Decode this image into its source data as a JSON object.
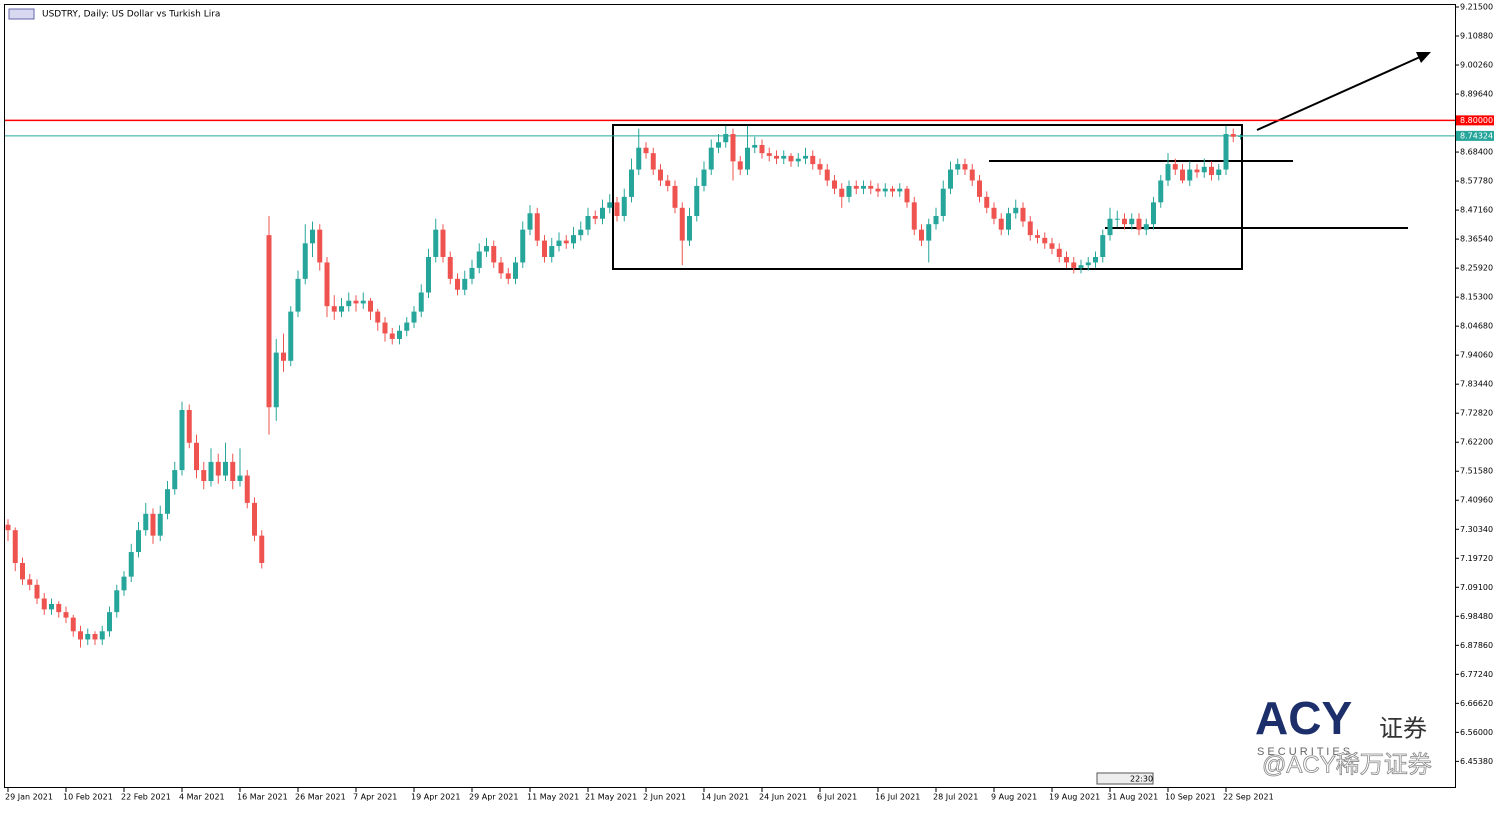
{
  "chart_data": {
    "type": "candlestick",
    "title": "USDTRY, Daily:  US Dollar vs Turkish Lira",
    "up_color": "#26a69a",
    "down_color": "#ef5350",
    "ylim": [
      6.36,
      9.215
    ],
    "yticks": [
      {
        "value": 9.215,
        "label": "9.21500"
      },
      {
        "value": 9.1088,
        "label": "9.10880"
      },
      {
        "value": 9.0026,
        "label": "9.00260"
      },
      {
        "value": 8.8964,
        "label": "8.89640"
      },
      {
        "value": 8.684,
        "label": "8.68400"
      },
      {
        "value": 8.5778,
        "label": "8.57780"
      },
      {
        "value": 8.4716,
        "label": "8.47160"
      },
      {
        "value": 8.3654,
        "label": "8.36540"
      },
      {
        "value": 8.2592,
        "label": "8.25920"
      },
      {
        "value": 8.153,
        "label": "8.15300"
      },
      {
        "value": 8.0468,
        "label": "8.04680"
      },
      {
        "value": 7.9406,
        "label": "7.94060"
      },
      {
        "value": 7.8344,
        "label": "7.83440"
      },
      {
        "value": 7.7282,
        "label": "7.72820"
      },
      {
        "value": 7.622,
        "label": "7.62200"
      },
      {
        "value": 7.5158,
        "label": "7.51580"
      },
      {
        "value": 7.4096,
        "label": "7.40960"
      },
      {
        "value": 7.3034,
        "label": "7.30340"
      },
      {
        "value": 7.1972,
        "label": "7.19720"
      },
      {
        "value": 7.091,
        "label": "7.09100"
      },
      {
        "value": 6.9848,
        "label": "6.98480"
      },
      {
        "value": 6.8786,
        "label": "6.87860"
      },
      {
        "value": 6.7724,
        "label": "6.77240"
      },
      {
        "value": 6.6662,
        "label": "6.66620"
      },
      {
        "value": 6.56,
        "label": "6.56000"
      },
      {
        "value": 6.4538,
        "label": "6.45380"
      }
    ],
    "levels": [
      {
        "value": 8.8,
        "label": "8.80000",
        "color": "#ff0000"
      },
      {
        "value": 8.74324,
        "label": "8.74324",
        "color": "#26a69a"
      }
    ],
    "categories": [
      "29 Jan 2021",
      null,
      null,
      null,
      null,
      null,
      null,
      null,
      "10 Feb 2021",
      null,
      null,
      null,
      null,
      null,
      null,
      null,
      "22 Feb 2021",
      null,
      null,
      null,
      null,
      null,
      null,
      null,
      "4 Mar 2021",
      null,
      null,
      null,
      null,
      null,
      null,
      null,
      "16 Mar 2021",
      null,
      null,
      null,
      null,
      null,
      null,
      null,
      "26 Mar 2021",
      null,
      null,
      null,
      null,
      null,
      null,
      null,
      "7 Apr 2021",
      null,
      null,
      null,
      null,
      null,
      null,
      null,
      "19 Apr 2021",
      null,
      null,
      null,
      null,
      null,
      null,
      null,
      "29 Apr 2021",
      null,
      null,
      null,
      null,
      null,
      null,
      null,
      "11 May 2021",
      null,
      null,
      null,
      null,
      null,
      null,
      null,
      "21 May 2021",
      null,
      null,
      null,
      null,
      null,
      null,
      null,
      "2 Jun 2021",
      null,
      null,
      null,
      null,
      null,
      null,
      null,
      "14 Jun 2021",
      null,
      null,
      null,
      null,
      null,
      null,
      null,
      "24 Jun 2021",
      null,
      null,
      null,
      null,
      null,
      null,
      null,
      "6 Jul 2021",
      null,
      null,
      null,
      null,
      null,
      null,
      null,
      "16 Jul 2021",
      null,
      null,
      null,
      null,
      null,
      null,
      null,
      "28 Jul 2021",
      null,
      null,
      null,
      null,
      null,
      null,
      null,
      "9 Aug 2021",
      null,
      null,
      null,
      null,
      null,
      null,
      null,
      "19 Aug 2021",
      null,
      null,
      null,
      null,
      null,
      null,
      null,
      "31 Aug 2021",
      null,
      null,
      null,
      null,
      null,
      null,
      null,
      "10 Sep 2021",
      null,
      null,
      null,
      null,
      null,
      null,
      null,
      "22 Sep 2021",
      null,
      null
    ],
    "ohlc": [
      [
        7.32,
        7.34,
        7.26,
        7.3
      ],
      [
        7.3,
        7.31,
        7.15,
        7.18
      ],
      [
        7.18,
        7.2,
        7.1,
        7.12
      ],
      [
        7.12,
        7.14,
        7.08,
        7.1
      ],
      [
        7.1,
        7.12,
        7.03,
        7.05
      ],
      [
        7.05,
        7.07,
        6.99,
        7.01
      ],
      [
        7.01,
        7.05,
        6.99,
        7.03
      ],
      [
        7.03,
        7.04,
        6.98,
        7.0
      ],
      [
        7.0,
        7.02,
        6.96,
        6.98
      ],
      [
        6.98,
        6.99,
        6.91,
        6.93
      ],
      [
        6.93,
        6.95,
        6.87,
        6.9
      ],
      [
        6.9,
        6.94,
        6.88,
        6.92
      ],
      [
        6.92,
        6.93,
        6.88,
        6.9
      ],
      [
        6.9,
        6.95,
        6.88,
        6.93
      ],
      [
        6.93,
        7.02,
        6.91,
        7.0
      ],
      [
        7.0,
        7.1,
        6.98,
        7.08
      ],
      [
        7.08,
        7.15,
        7.06,
        7.13
      ],
      [
        7.13,
        7.25,
        7.11,
        7.22
      ],
      [
        7.22,
        7.33,
        7.2,
        7.3
      ],
      [
        7.3,
        7.4,
        7.28,
        7.36
      ],
      [
        7.36,
        7.38,
        7.25,
        7.28
      ],
      [
        7.28,
        7.39,
        7.26,
        7.36
      ],
      [
        7.36,
        7.48,
        7.34,
        7.45
      ],
      [
        7.45,
        7.55,
        7.43,
        7.52
      ],
      [
        7.52,
        7.77,
        7.5,
        7.74
      ],
      [
        7.74,
        7.76,
        7.6,
        7.62
      ],
      [
        7.62,
        7.65,
        7.49,
        7.52
      ],
      [
        7.52,
        7.55,
        7.45,
        7.48
      ],
      [
        7.48,
        7.6,
        7.46,
        7.55
      ],
      [
        7.55,
        7.58,
        7.47,
        7.5
      ],
      [
        7.5,
        7.62,
        7.48,
        7.55
      ],
      [
        7.55,
        7.58,
        7.45,
        7.48
      ],
      [
        7.48,
        7.6,
        7.46,
        7.5
      ],
      [
        7.5,
        7.52,
        7.38,
        7.4
      ],
      [
        7.4,
        7.42,
        7.26,
        7.28
      ],
      [
        7.28,
        7.3,
        7.16,
        7.18
      ],
      [
        8.38,
        8.45,
        7.65,
        7.75
      ],
      [
        7.75,
        8.0,
        7.7,
        7.95
      ],
      [
        7.95,
        8.02,
        7.88,
        7.92
      ],
      [
        7.92,
        8.12,
        7.9,
        8.1
      ],
      [
        8.1,
        8.25,
        8.08,
        8.22
      ],
      [
        8.22,
        8.42,
        8.2,
        8.35
      ],
      [
        8.35,
        8.43,
        8.3,
        8.4
      ],
      [
        8.4,
        8.42,
        8.25,
        8.28
      ],
      [
        8.28,
        8.3,
        8.08,
        8.12
      ],
      [
        8.12,
        8.16,
        8.07,
        8.1
      ],
      [
        8.1,
        8.15,
        8.08,
        8.12
      ],
      [
        8.12,
        8.17,
        8.1,
        8.14
      ],
      [
        8.14,
        8.16,
        8.1,
        8.13
      ],
      [
        8.13,
        8.17,
        8.11,
        8.14
      ],
      [
        8.14,
        8.15,
        8.07,
        8.1
      ],
      [
        8.1,
        8.11,
        8.03,
        8.06
      ],
      [
        8.06,
        8.08,
        7.99,
        8.02
      ],
      [
        8.02,
        8.04,
        7.98,
        8.0
      ],
      [
        8.0,
        8.05,
        7.98,
        8.03
      ],
      [
        8.03,
        8.08,
        8.01,
        8.06
      ],
      [
        8.06,
        8.12,
        8.04,
        8.1
      ],
      [
        8.1,
        8.2,
        8.08,
        8.17
      ],
      [
        8.17,
        8.33,
        8.15,
        8.3
      ],
      [
        8.3,
        8.44,
        8.28,
        8.4
      ],
      [
        8.4,
        8.42,
        8.28,
        8.3
      ],
      [
        8.3,
        8.32,
        8.2,
        8.22
      ],
      [
        8.22,
        8.24,
        8.16,
        8.18
      ],
      [
        8.18,
        8.25,
        8.16,
        8.22
      ],
      [
        8.22,
        8.29,
        8.2,
        8.26
      ],
      [
        8.26,
        8.35,
        8.24,
        8.32
      ],
      [
        8.32,
        8.37,
        8.3,
        8.34
      ],
      [
        8.34,
        8.36,
        8.26,
        8.28
      ],
      [
        8.28,
        8.3,
        8.22,
        8.24
      ],
      [
        8.24,
        8.26,
        8.2,
        8.22
      ],
      [
        8.22,
        8.3,
        8.2,
        8.28
      ],
      [
        8.28,
        8.43,
        8.26,
        8.4
      ],
      [
        8.4,
        8.49,
        8.38,
        8.46
      ],
      [
        8.46,
        8.48,
        8.34,
        8.36
      ],
      [
        8.36,
        8.38,
        8.28,
        8.3
      ],
      [
        8.3,
        8.37,
        8.28,
        8.34
      ],
      [
        8.34,
        8.39,
        8.32,
        8.36
      ],
      [
        8.36,
        8.38,
        8.33,
        8.35
      ],
      [
        8.35,
        8.41,
        8.33,
        8.38
      ],
      [
        8.38,
        8.43,
        8.36,
        8.4
      ],
      [
        8.4,
        8.48,
        8.38,
        8.45
      ],
      [
        8.45,
        8.47,
        8.42,
        8.44
      ],
      [
        8.44,
        8.51,
        8.42,
        8.48
      ],
      [
        8.48,
        8.53,
        8.46,
        8.5
      ],
      [
        8.5,
        8.52,
        8.43,
        8.45
      ],
      [
        8.45,
        8.55,
        8.43,
        8.52
      ],
      [
        8.52,
        8.66,
        8.5,
        8.62
      ],
      [
        8.62,
        8.77,
        8.6,
        8.7
      ],
      [
        8.7,
        8.72,
        8.66,
        8.68
      ],
      [
        8.68,
        8.7,
        8.6,
        8.62
      ],
      [
        8.62,
        8.64,
        8.56,
        8.58
      ],
      [
        8.58,
        8.6,
        8.54,
        8.56
      ],
      [
        8.56,
        8.58,
        8.46,
        8.48
      ],
      [
        8.48,
        8.5,
        8.27,
        8.36
      ],
      [
        8.36,
        8.48,
        8.34,
        8.45
      ],
      [
        8.45,
        8.59,
        8.43,
        8.56
      ],
      [
        8.56,
        8.65,
        8.54,
        8.62
      ],
      [
        8.62,
        8.73,
        8.6,
        8.7
      ],
      [
        8.7,
        8.75,
        8.68,
        8.72
      ],
      [
        8.72,
        8.78,
        8.7,
        8.75
      ],
      [
        8.75,
        8.77,
        8.58,
        8.65
      ],
      [
        8.65,
        8.67,
        8.6,
        8.62
      ],
      [
        8.62,
        8.78,
        8.6,
        8.7
      ],
      [
        8.7,
        8.74,
        8.68,
        8.71
      ],
      [
        8.71,
        8.73,
        8.66,
        8.68
      ],
      [
        8.68,
        8.7,
        8.65,
        8.67
      ],
      [
        8.67,
        8.69,
        8.64,
        8.66
      ],
      [
        8.66,
        8.69,
        8.64,
        8.67
      ],
      [
        8.67,
        8.68,
        8.63,
        8.65
      ],
      [
        8.65,
        8.68,
        8.63,
        8.66
      ],
      [
        8.66,
        8.7,
        8.64,
        8.67
      ],
      [
        8.67,
        8.69,
        8.62,
        8.64
      ],
      [
        8.64,
        8.66,
        8.6,
        8.62
      ],
      [
        8.62,
        8.64,
        8.56,
        8.58
      ],
      [
        8.58,
        8.6,
        8.53,
        8.55
      ],
      [
        8.55,
        8.57,
        8.48,
        8.52
      ],
      [
        8.52,
        8.58,
        8.5,
        8.56
      ],
      [
        8.56,
        8.58,
        8.53,
        8.55
      ],
      [
        8.55,
        8.58,
        8.53,
        8.56
      ],
      [
        8.56,
        8.58,
        8.53,
        8.55
      ],
      [
        8.55,
        8.57,
        8.52,
        8.54
      ],
      [
        8.54,
        8.57,
        8.52,
        8.55
      ],
      [
        8.55,
        8.56,
        8.52,
        8.54
      ],
      [
        8.54,
        8.57,
        8.52,
        8.55
      ],
      [
        8.55,
        8.56,
        8.48,
        8.5
      ],
      [
        8.5,
        8.52,
        8.38,
        8.4
      ],
      [
        8.4,
        8.42,
        8.34,
        8.36
      ],
      [
        8.36,
        8.44,
        8.28,
        8.42
      ],
      [
        8.42,
        8.48,
        8.4,
        8.45
      ],
      [
        8.45,
        8.58,
        8.43,
        8.55
      ],
      [
        8.55,
        8.65,
        8.53,
        8.62
      ],
      [
        8.62,
        8.66,
        8.6,
        8.64
      ],
      [
        8.64,
        8.66,
        8.6,
        8.62
      ],
      [
        8.62,
        8.64,
        8.56,
        8.58
      ],
      [
        8.58,
        8.6,
        8.5,
        8.52
      ],
      [
        8.52,
        8.54,
        8.46,
        8.48
      ],
      [
        8.48,
        8.5,
        8.42,
        8.44
      ],
      [
        8.44,
        8.46,
        8.38,
        8.4
      ],
      [
        8.4,
        8.48,
        8.38,
        8.46
      ],
      [
        8.46,
        8.51,
        8.44,
        8.48
      ],
      [
        8.48,
        8.5,
        8.41,
        8.43
      ],
      [
        8.43,
        8.45,
        8.36,
        8.38
      ],
      [
        8.38,
        8.4,
        8.35,
        8.37
      ],
      [
        8.37,
        8.39,
        8.33,
        8.35
      ],
      [
        8.35,
        8.37,
        8.31,
        8.33
      ],
      [
        8.33,
        8.35,
        8.28,
        8.3
      ],
      [
        8.3,
        8.32,
        8.26,
        8.28
      ],
      [
        8.28,
        8.3,
        8.24,
        8.26
      ],
      [
        8.26,
        8.29,
        8.24,
        8.27
      ],
      [
        8.27,
        8.3,
        8.25,
        8.28
      ],
      [
        8.28,
        8.32,
        8.26,
        8.3
      ],
      [
        8.3,
        8.4,
        8.28,
        8.38
      ],
      [
        8.38,
        8.48,
        8.36,
        8.44
      ],
      [
        8.44,
        8.47,
        8.41,
        8.44
      ],
      [
        8.44,
        8.46,
        8.4,
        8.42
      ],
      [
        8.42,
        8.46,
        8.4,
        8.44
      ],
      [
        8.44,
        8.46,
        8.38,
        8.4
      ],
      [
        8.4,
        8.44,
        8.38,
        8.42
      ],
      [
        8.42,
        8.52,
        8.4,
        8.5
      ],
      [
        8.5,
        8.6,
        8.48,
        8.58
      ],
      [
        8.58,
        8.68,
        8.56,
        8.64
      ],
      [
        8.64,
        8.66,
        8.6,
        8.62
      ],
      [
        8.62,
        8.64,
        8.57,
        8.58
      ],
      [
        8.58,
        8.65,
        8.56,
        8.62
      ],
      [
        8.62,
        8.64,
        8.59,
        8.61
      ],
      [
        8.61,
        8.66,
        8.59,
        8.63
      ],
      [
        8.63,
        8.65,
        8.58,
        8.6
      ],
      [
        8.6,
        8.64,
        8.58,
        8.62
      ],
      [
        8.62,
        8.78,
        8.6,
        8.75
      ],
      [
        8.75,
        8.77,
        8.72,
        8.74
      ],
      [
        8.74,
        8.75,
        8.73,
        8.74324
      ]
    ],
    "watermark": {
      "brand": "ACY",
      "cn": "证券",
      "sub": "S E C U R I T I E S",
      "handle": "@ACY稀万证券"
    },
    "time_marker": "22:30"
  }
}
